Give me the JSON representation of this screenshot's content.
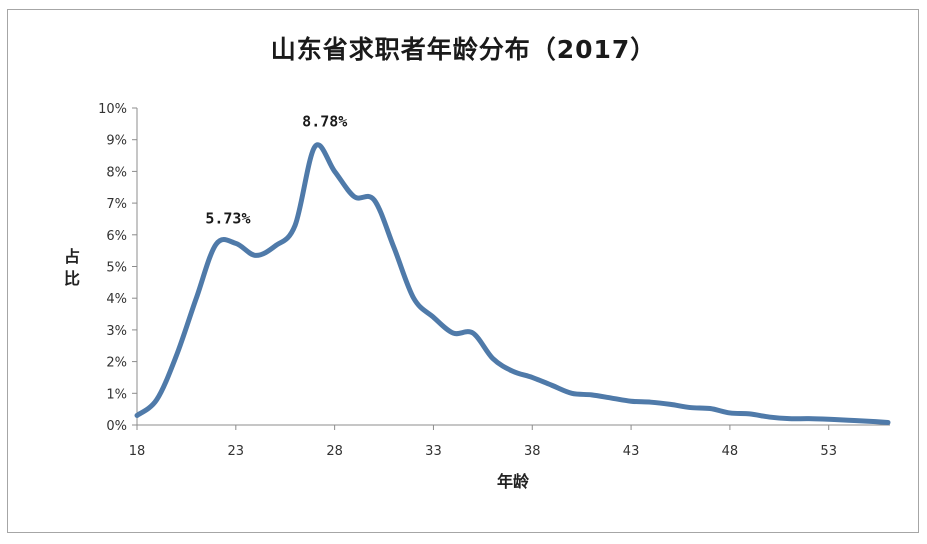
{
  "chart_data": {
    "type": "line",
    "title": "山东省求职者年龄分布（2017）",
    "xlabel": "年龄",
    "ylabel": "占比",
    "xlim": [
      18,
      56
    ],
    "ylim": [
      0,
      10
    ],
    "x_ticks": [
      "18",
      "23",
      "28",
      "33",
      "38",
      "43",
      "48",
      "53"
    ],
    "y_ticks": [
      "0%",
      "1%",
      "2%",
      "3%",
      "4%",
      "5%",
      "6%",
      "7%",
      "8%",
      "9%",
      "10%"
    ],
    "series": [
      {
        "name": "占比",
        "color": "#4f7aa9",
        "x": [
          18,
          19,
          20,
          21,
          22,
          23,
          24,
          25,
          26,
          27,
          28,
          29,
          30,
          31,
          32,
          33,
          34,
          35,
          36,
          37,
          38,
          39,
          40,
          41,
          42,
          43,
          44,
          45,
          46,
          47,
          48,
          49,
          50,
          51,
          52,
          53,
          54,
          55,
          56
        ],
        "values": [
          0.3,
          0.8,
          2.2,
          4.0,
          5.7,
          5.73,
          5.35,
          5.65,
          6.3,
          8.78,
          8.0,
          7.2,
          7.1,
          5.6,
          4.0,
          3.4,
          2.9,
          2.9,
          2.1,
          1.7,
          1.5,
          1.25,
          1.0,
          0.95,
          0.85,
          0.75,
          0.72,
          0.65,
          0.55,
          0.52,
          0.38,
          0.35,
          0.25,
          0.2,
          0.2,
          0.18,
          0.15,
          0.12,
          0.08
        ]
      }
    ],
    "annotations": [
      {
        "x": 22.6,
        "y": 5.73,
        "text": "5.73%"
      },
      {
        "x": 27.5,
        "y": 8.78,
        "text": "8.78%"
      }
    ]
  }
}
